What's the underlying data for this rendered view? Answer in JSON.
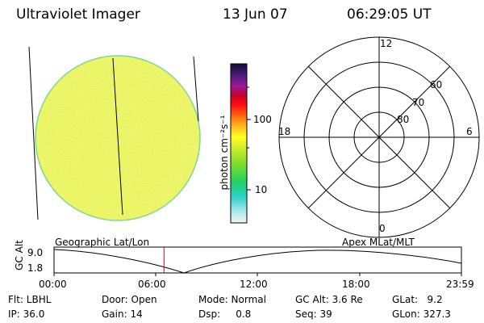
{
  "header": {
    "instrument": "Ultraviolet Imager",
    "date": "13 Jun 07",
    "time": "06:29:05 UT"
  },
  "colorbar": {
    "unit_label": "photon cm⁻²s⁻¹",
    "tick_100": "100",
    "tick_10": "10"
  },
  "polar_plot": {
    "lat_labels": [
      "80",
      "70",
      "60"
    ],
    "mlt_labels": {
      "top": "12",
      "left": "18",
      "right": "6",
      "bottom": "0"
    }
  },
  "orbit_plot": {
    "ylabel": "GC Alt",
    "y_top": "9.0",
    "y_bottom": "1.8",
    "left_title": "Geographic Lat/Lon",
    "right_title": "Apex MLat/MLT",
    "x_ticks": [
      "00:00",
      "06:00",
      "12:00",
      "18:00",
      "23:59"
    ],
    "current_marker_hours": 6.48,
    "marker_color": "#ff0000"
  },
  "info": {
    "flt": "Flt: LBHL",
    "door": "Door: Open",
    "mode": "Mode: Normal",
    "gc_alt": "GC Alt: 3.6 Re",
    "glat": "GLat:   9.2",
    "ip": "IP: 36.0",
    "gain": "Gain: 14",
    "dsp": "Dsp:     0.8",
    "seq": "Seq: 39",
    "glon": "GLon: 327.3"
  }
}
